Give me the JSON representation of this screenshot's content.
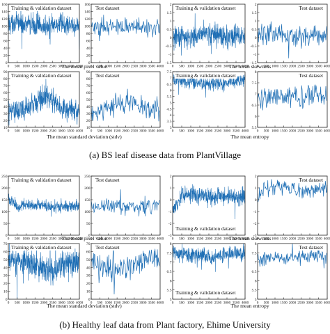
{
  "captions": {
    "a": "(a) BS leaf disease data from PlantVillage",
    "b": "(b) Healthy leaf data from Plant factory, Ehime University"
  },
  "colors": {
    "series": "#1f6fb5",
    "axis": "#222222"
  },
  "chart_data": [
    {
      "type": "line",
      "section": "a",
      "xlabel": "The mean pixel value",
      "panels": [
        {
          "title": "Training & validation dataset",
          "xlim": [
            0,
            4000
          ],
          "xticks": [
            0,
            500,
            1000,
            1500,
            2000,
            2500,
            3000,
            3500,
            4000
          ],
          "ylim": [
            0,
            160
          ],
          "yticks": [
            0,
            20,
            40,
            60,
            80,
            100,
            120,
            140,
            160
          ],
          "profile": {
            "x": [
              0,
              1000,
              2000,
              2500,
              3000,
              4000
            ],
            "y": [
              108,
              108,
              95,
              100,
              105,
              100
            ]
          },
          "noise": 14
        },
        {
          "title": "Test dataset",
          "xlim": [
            0,
            4000
          ],
          "xticks": [
            0,
            500,
            1000,
            1500,
            2000,
            2500,
            3000,
            3500,
            4000
          ],
          "ylim": [
            0,
            160
          ],
          "yticks": [
            0,
            20,
            40,
            60,
            80,
            100,
            120,
            140,
            160
          ],
          "profile": {
            "x": [
              0,
              1000,
              2000,
              3000,
              4000
            ],
            "y": [
              100,
              98,
              102,
              97,
              100
            ]
          },
          "noise": 12
        }
      ]
    },
    {
      "type": "line",
      "section": "a",
      "xlabel": "The mean skewness",
      "panels": [
        {
          "title": "Training & validation dataset",
          "xlim": [
            0,
            4000
          ],
          "xticks": [
            0,
            500,
            1000,
            1500,
            2000,
            2500,
            3000,
            3500,
            4000
          ],
          "ylim": [
            -1.5,
            2.0
          ],
          "yticks": [
            -1.5,
            -1.0,
            -0.5,
            0.0,
            0.5,
            1.0,
            1.5,
            2.0
          ],
          "profile": {
            "x": [
              0,
              1000,
              2000,
              3000,
              4000
            ],
            "y": [
              0.1,
              0.05,
              0.2,
              0.0,
              0.1
            ]
          },
          "noise": 0.35
        },
        {
          "title": "Test dataset",
          "xlim": [
            0,
            4000
          ],
          "xticks": [
            0,
            500,
            1000,
            1500,
            2000,
            2500,
            3000,
            3500,
            4000
          ],
          "ylim": [
            -1.5,
            2.0
          ],
          "yticks": [
            -1.5,
            -1.0,
            -0.5,
            0.0,
            0.5,
            1.0,
            1.5,
            2.0
          ],
          "profile": {
            "x": [
              0,
              1000,
              2000,
              3000,
              4000
            ],
            "y": [
              0.1,
              0.3,
              0.1,
              0.0,
              0.1
            ]
          },
          "noise": 0.3
        }
      ]
    },
    {
      "type": "line",
      "section": "a",
      "xlabel": "The mean standard deviation (stdv)",
      "panels": [
        {
          "title": "Training & validation dataset",
          "xlim": [
            0,
            4000
          ],
          "xticks": [
            0,
            500,
            1000,
            1500,
            2000,
            2500,
            3000,
            3500,
            4000
          ],
          "ylim": [
            10,
            90
          ],
          "yticks": [
            10,
            20,
            30,
            40,
            50,
            60,
            70,
            80,
            90
          ],
          "profile": {
            "x": [
              0,
              1000,
              1500,
              2000,
              2500,
              3000,
              4000
            ],
            "y": [
              33,
              35,
              45,
              55,
              50,
              38,
              33
            ]
          },
          "noise": 8
        },
        {
          "title": "Test dataset",
          "xlim": [
            0,
            4000
          ],
          "xticks": [
            0,
            500,
            1000,
            1500,
            2000,
            2500,
            3000,
            3500,
            4000
          ],
          "ylim": [
            10,
            90
          ],
          "yticks": [
            10,
            20,
            30,
            40,
            50,
            60,
            70,
            80,
            90
          ],
          "profile": {
            "x": [
              0,
              1000,
              2000,
              3000,
              4000
            ],
            "y": [
              33,
              38,
              48,
              38,
              35
            ]
          },
          "noise": 7
        }
      ]
    },
    {
      "type": "line",
      "section": "a",
      "xlabel": "The mean entropy",
      "panels": [
        {
          "title": "Training & validation dataset",
          "xlim": [
            0,
            4000
          ],
          "xticks": [
            0,
            500,
            1000,
            1500,
            2000,
            2500,
            3000,
            3500,
            4000
          ],
          "ylim": [
            3.0,
            7.5
          ],
          "yticks": [
            3.0,
            3.5,
            4.0,
            4.5,
            5.0,
            5.5,
            6.0,
            6.5,
            7.0,
            7.5
          ],
          "profile": {
            "x": [
              0,
              1000,
              2000,
              3000,
              4000
            ],
            "y": [
              6.8,
              6.7,
              6.5,
              6.6,
              6.8
            ]
          },
          "noise": 0.25
        },
        {
          "title": "Test dataset",
          "xlim": [
            0,
            4000
          ],
          "xticks": [
            0,
            500,
            1000,
            1500,
            2000,
            2500,
            3000,
            3500,
            4000
          ],
          "ylim": [
            5.5,
            8.0
          ],
          "yticks": [
            5.5,
            6.0,
            6.5,
            7.0,
            7.5,
            8.0
          ],
          "profile": {
            "x": [
              0,
              1000,
              2000,
              3000,
              4000
            ],
            "y": [
              6.8,
              6.9,
              6.8,
              7.0,
              6.8
            ]
          },
          "noise": 0.25
        }
      ]
    },
    {
      "type": "line",
      "section": "b",
      "xlabel": "The mean pixel value",
      "panels": [
        {
          "title": "Training & validation dataset",
          "xlim": [
            0,
            4000
          ],
          "xticks": [
            0,
            500,
            1000,
            1500,
            2000,
            2500,
            3000,
            3500,
            4000
          ],
          "ylim": [
            0,
            250
          ],
          "yticks": [
            0,
            50,
            100,
            150,
            200,
            250
          ],
          "profile": {
            "x": [
              0,
              500,
              1000,
              2000,
              3000,
              4000
            ],
            "y": [
              160,
              115,
              130,
              125,
              120,
              125
            ]
          },
          "noise": 12
        },
        {
          "title": "Test dataset",
          "xlim": [
            0,
            4000
          ],
          "xticks": [
            0,
            500,
            1000,
            1500,
            2000,
            2500,
            3000,
            3500,
            4000
          ],
          "ylim": [
            0,
            250
          ],
          "yticks": [
            0,
            50,
            100,
            150,
            200,
            250
          ],
          "profile": {
            "x": [
              0,
              1000,
              2000,
              3000,
              4000
            ],
            "y": [
              120,
              125,
              115,
              120,
              125
            ]
          },
          "noise": 15
        }
      ]
    },
    {
      "type": "line",
      "section": "b",
      "xlabel": "The mean skewness",
      "panels": [
        {
          "title": "Training & validation dataset",
          "xlim": [
            0,
            4000
          ],
          "xticks": [
            0,
            500,
            1000,
            1500,
            2000,
            2500,
            3000,
            3500,
            4000
          ],
          "ylim": [
            -3,
            2
          ],
          "yticks": [
            -3,
            -2,
            -1,
            0,
            1,
            2
          ],
          "profile": {
            "x": [
              0,
              500,
              1000,
              2000,
              3000,
              4000
            ],
            "y": [
              -1.0,
              0.3,
              0.5,
              0.2,
              0.3,
              0.2
            ]
          },
          "noise": 0.35
        },
        {
          "title": "Test dataset",
          "xlim": [
            0,
            4000
          ],
          "xticks": [
            0,
            500,
            1000,
            1500,
            2000,
            2500,
            3000,
            3500,
            4000
          ],
          "ylim": [
            -3,
            2
          ],
          "yticks": [
            -3,
            -2,
            -1,
            0,
            1,
            2
          ],
          "profile": {
            "x": [
              0,
              1000,
              1500,
              2000,
              3000,
              4000
            ],
            "y": [
              0.5,
              1.0,
              1.2,
              1.0,
              0.8,
              0.9
            ]
          },
          "noise": 0.3
        }
      ]
    },
    {
      "type": "line",
      "section": "b",
      "xlabel": "The mean standard deviation (stdv)",
      "panels": [
        {
          "title": "Training & validation dataset",
          "xlim": [
            0,
            4000
          ],
          "xticks": [
            0,
            500,
            1000,
            1500,
            2000,
            2500,
            3000,
            3500,
            4000
          ],
          "ylim": [
            0,
            70
          ],
          "yticks": [
            0,
            10,
            20,
            30,
            40,
            50,
            60,
            70
          ],
          "profile": {
            "x": [
              0,
              1000,
              2000,
              2500,
              3000,
              4000
            ],
            "y": [
              50,
              45,
              40,
              30,
              45,
              48
            ]
          },
          "noise": 8
        },
        {
          "title": "Test dataset",
          "xlim": [
            0,
            4000
          ],
          "xticks": [
            0,
            500,
            1000,
            1500,
            2000,
            2500,
            3000,
            3500,
            4000
          ],
          "ylim": [
            0,
            70
          ],
          "yticks": [
            0,
            10,
            20,
            30,
            40,
            50,
            60,
            70
          ],
          "profile": {
            "x": [
              0,
              1000,
              2000,
              3000,
              4000
            ],
            "y": [
              45,
              40,
              38,
              50,
              50
            ]
          },
          "noise": 8
        }
      ]
    },
    {
      "type": "line",
      "section": "b",
      "xlabel": "The mean entropy",
      "panels": [
        {
          "title": "Training & validation dataset",
          "xlim": [
            0,
            4000
          ],
          "xticks": [
            0,
            500,
            1000,
            1500,
            2000,
            2500,
            3000,
            3500,
            4000
          ],
          "ylim": [
            5.0,
            8.0
          ],
          "yticks": [
            5.0,
            5.5,
            6.0,
            6.5,
            7.0,
            7.5,
            8.0
          ],
          "profile": {
            "x": [
              0,
              1000,
              2000,
              3000,
              4000
            ],
            "y": [
              7.5,
              7.4,
              7.3,
              7.4,
              7.5
            ]
          },
          "noise": 0.2
        },
        {
          "title": "Test dataset",
          "xlim": [
            0,
            4000
          ],
          "xticks": [
            0,
            500,
            1000,
            1500,
            2000,
            2500,
            3000,
            3500,
            4000
          ],
          "ylim": [
            5.0,
            8.0
          ],
          "yticks": [
            5.0,
            5.5,
            6.0,
            6.5,
            7.0,
            7.5,
            8.0
          ],
          "profile": {
            "x": [
              0,
              1000,
              2000,
              3000,
              4000
            ],
            "y": [
              7.2,
              7.3,
              7.2,
              7.4,
              7.3
            ]
          },
          "noise": 0.2
        }
      ]
    }
  ]
}
